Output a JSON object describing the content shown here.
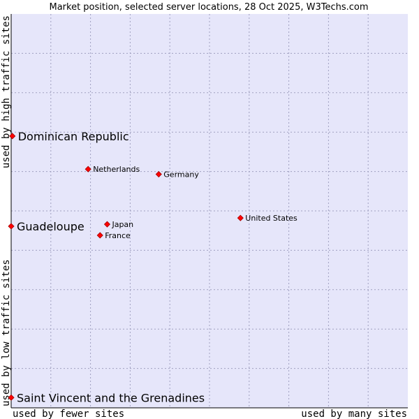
{
  "chart_data": {
    "type": "scatter",
    "title": "Market position, selected server locations, 28 Oct 2025, W3Techs.com",
    "xlabel_left": "used by fewer sites",
    "xlabel_right": "used by many sites",
    "ylabel_top": "used by high traffic sites",
    "ylabel_bottom": "used by low traffic sites",
    "xlim": [
      0,
      100
    ],
    "ylim": [
      0,
      100
    ],
    "grid": true,
    "colors": {
      "plot_bg": "#e6e6fa",
      "grid": "#a0a0c0",
      "marker": "#ff0000",
      "marker_edge": "#a00000"
    },
    "points": [
      {
        "label": "Dominican Republic",
        "x": 0.3,
        "y": 69.0,
        "highlight": true
      },
      {
        "label": "Guadeloupe",
        "x": 0.0,
        "y": 46.1,
        "highlight": true
      },
      {
        "label": "Saint Vincent and the Grenadines",
        "x": 0.0,
        "y": 2.6,
        "highlight": true
      },
      {
        "label": "Netherlands",
        "x": 19.4,
        "y": 60.6,
        "highlight": false
      },
      {
        "label": "Germany",
        "x": 37.2,
        "y": 59.3,
        "highlight": false
      },
      {
        "label": "United States",
        "x": 57.8,
        "y": 48.2,
        "highlight": false
      },
      {
        "label": "Japan",
        "x": 24.2,
        "y": 46.6,
        "highlight": false
      },
      {
        "label": "France",
        "x": 22.4,
        "y": 43.8,
        "highlight": false
      }
    ]
  }
}
